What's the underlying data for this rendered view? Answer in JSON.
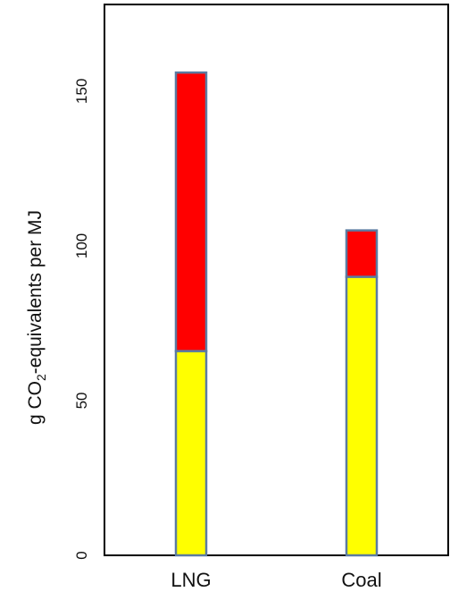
{
  "chart_data": {
    "type": "bar",
    "stacked": true,
    "categories": [
      "LNG",
      "Coal"
    ],
    "series": [
      {
        "values": [
          66,
          90
        ],
        "color": "#ffff00"
      },
      {
        "values": [
          90,
          15
        ],
        "color": "#ff0000"
      }
    ],
    "bar_edge_color": "#5b7ba1",
    "ylabel": "g CO2-equivalents per MJ",
    "ylabel_parts": {
      "prefix": "g CO",
      "subscript": "2",
      "suffix": "-equivalents per MJ"
    },
    "ylim": [
      0,
      178
    ],
    "yticks": [
      0,
      50,
      100,
      150
    ],
    "grid": false,
    "legend": "none"
  }
}
